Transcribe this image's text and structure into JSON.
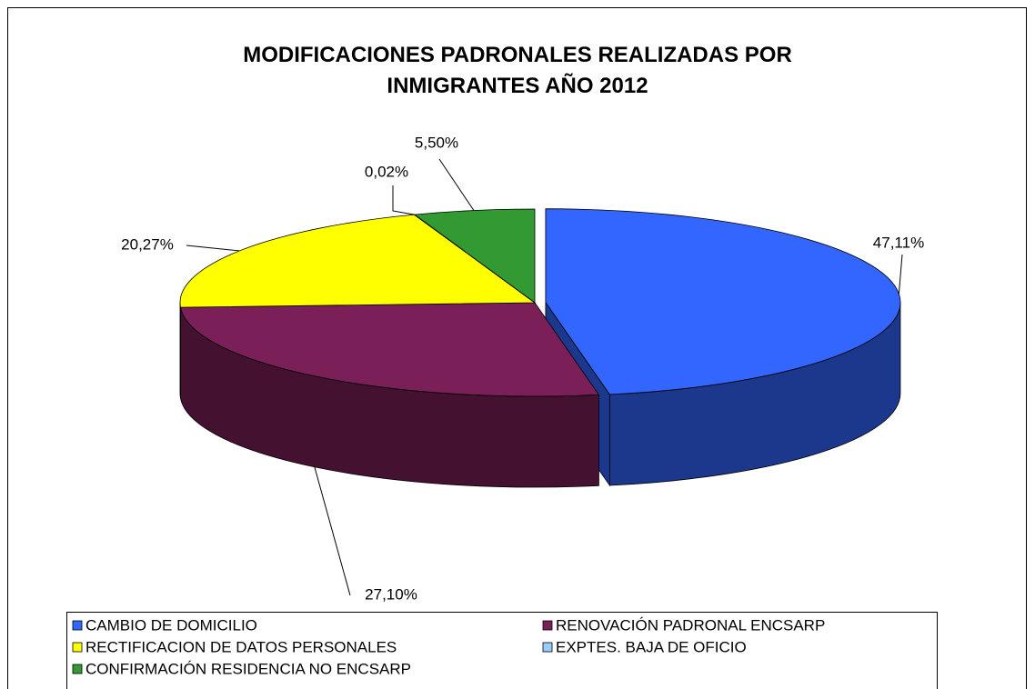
{
  "chart_data": {
    "type": "pie",
    "title": "MODIFICACIONES PADRONALES REALIZADAS POR INMIGRANTES AÑO 2012",
    "categories": [
      "CAMBIO DE DOMICILIO",
      "RENOVACIÓN PADRONAL ENCSARP",
      "RECTIFICACION DE DATOS PERSONALES",
      "EXPTES. BAJA DE OFICIO",
      "CONFIRMACIÓN RESIDENCIA NO ENCSARP"
    ],
    "values": [
      47.11,
      27.1,
      20.27,
      0.02,
      5.5
    ],
    "value_labels": [
      "47,11%",
      "27,10%",
      "20,27%",
      "0,02%",
      "5,50%"
    ],
    "colors": [
      "#3366ff",
      "#7b1f58",
      "#ffff00",
      "#99ccff",
      "#339933"
    ],
    "legend": "bottom"
  }
}
